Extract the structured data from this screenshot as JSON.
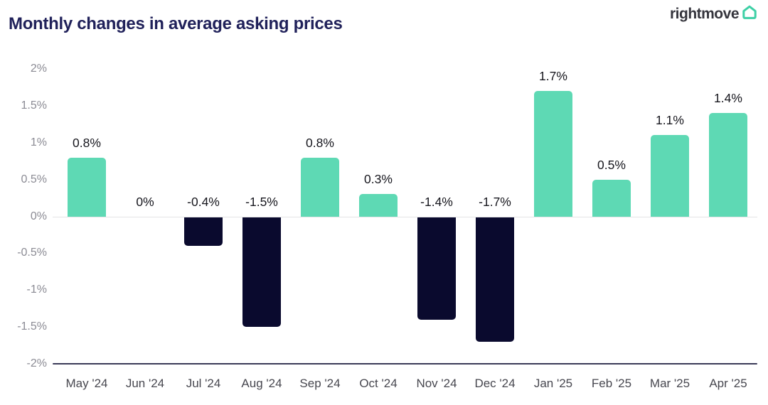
{
  "header": {
    "title": "Monthly changes in average asking prices",
    "logo_text": "rightmove",
    "logo_icon": "home-icon",
    "logo_icon_color": "#3ed0a6"
  },
  "chart_data": {
    "type": "bar",
    "title": "Monthly changes in average asking prices",
    "categories": [
      "May '24",
      "Jun '24",
      "Jul '24",
      "Aug '24",
      "Sep '24",
      "Oct '24",
      "Nov '24",
      "Dec '24",
      "Jan '25",
      "Feb '25",
      "Mar '25",
      "Apr '25"
    ],
    "values": [
      0.8,
      0,
      -0.4,
      -1.5,
      0.8,
      0.3,
      -1.4,
      -1.7,
      1.7,
      0.5,
      1.1,
      1.4
    ],
    "bar_labels": [
      "0.8%",
      "0%",
      "-0.4%",
      "-1.5%",
      "0.8%",
      "0.3%",
      "-1.4%",
      "-1.7%",
      "1.7%",
      "0.5%",
      "1.1%",
      "1.4%"
    ],
    "xlabel": "",
    "ylabel": "",
    "ylim": [
      -2,
      2
    ],
    "ytick_step": 0.5,
    "ytick_labels": [
      "2%",
      "1.5%",
      "1%",
      "0.5%",
      "0%",
      "-0.5%",
      "-1%",
      "-1.5%",
      "-2%"
    ],
    "legend": false,
    "grid": false,
    "colors": {
      "positive_bar": "#5ed9b4",
      "negative_bar": "#0a0a2e",
      "zero_line": "#e3e3e6",
      "baseline": "#3a3a57",
      "value_label": "#16161d",
      "x_tick_label": "#47474f",
      "y_tick_label": "#8b8b94",
      "title": "#20215a"
    }
  }
}
